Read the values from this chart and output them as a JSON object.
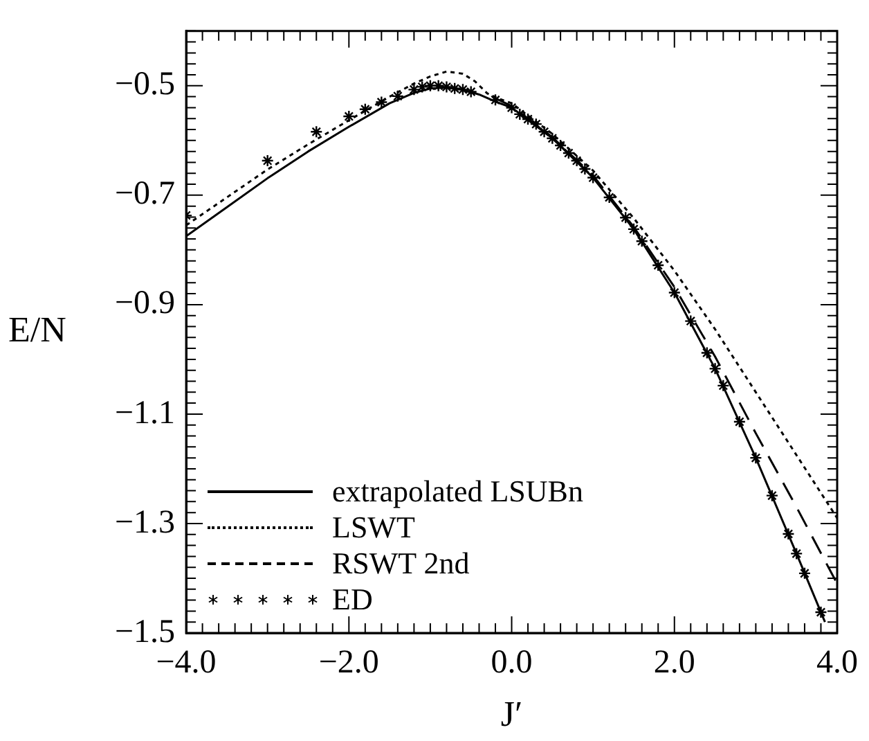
{
  "chart_data": {
    "type": "line",
    "xlabel": "J′",
    "ylabel": "E/N",
    "xlim": [
      -4,
      4
    ],
    "ylim": [
      -1.5,
      -0.4
    ],
    "xticks": [
      {
        "value": -4,
        "label": "−4.0"
      },
      {
        "value": -3.8,
        "label": null
      },
      {
        "value": -3.6,
        "label": null
      },
      {
        "value": -3.4,
        "label": null
      },
      {
        "value": -3.2,
        "label": null
      },
      {
        "value": -3,
        "label": null
      },
      {
        "value": -2.8,
        "label": null
      },
      {
        "value": -2.6,
        "label": null
      },
      {
        "value": -2.4,
        "label": null
      },
      {
        "value": -2.2,
        "label": null
      },
      {
        "value": -2,
        "label": "−2.0"
      },
      {
        "value": -1.8,
        "label": null
      },
      {
        "value": -1.6,
        "label": null
      },
      {
        "value": -1.4,
        "label": null
      },
      {
        "value": -1.2,
        "label": null
      },
      {
        "value": -1,
        "label": null
      },
      {
        "value": -0.8,
        "label": null
      },
      {
        "value": -0.6,
        "label": null
      },
      {
        "value": -0.4,
        "label": null
      },
      {
        "value": -0.2,
        "label": null
      },
      {
        "value": 0,
        "label": "0.0"
      },
      {
        "value": 0.2,
        "label": null
      },
      {
        "value": 0.4,
        "label": null
      },
      {
        "value": 0.6,
        "label": null
      },
      {
        "value": 0.8,
        "label": null
      },
      {
        "value": 1,
        "label": null
      },
      {
        "value": 1.2,
        "label": null
      },
      {
        "value": 1.4,
        "label": null
      },
      {
        "value": 1.6,
        "label": null
      },
      {
        "value": 1.8,
        "label": null
      },
      {
        "value": 2,
        "label": "2.0"
      },
      {
        "value": 2.2,
        "label": null
      },
      {
        "value": 2.4,
        "label": null
      },
      {
        "value": 2.6,
        "label": null
      },
      {
        "value": 2.8,
        "label": null
      },
      {
        "value": 3,
        "label": null
      },
      {
        "value": 3.2,
        "label": null
      },
      {
        "value": 3.4,
        "label": null
      },
      {
        "value": 3.6,
        "label": null
      },
      {
        "value": 3.8,
        "label": null
      },
      {
        "value": 4,
        "label": "4.0"
      }
    ],
    "yticks": [
      {
        "value": -1.5,
        "label": "−1.5"
      },
      {
        "value": -1.48,
        "label": null
      },
      {
        "value": -1.46,
        "label": null
      },
      {
        "value": -1.44,
        "label": null
      },
      {
        "value": -1.42,
        "label": null
      },
      {
        "value": -1.4,
        "label": null
      },
      {
        "value": -1.38,
        "label": null
      },
      {
        "value": -1.36,
        "label": null
      },
      {
        "value": -1.34,
        "label": null
      },
      {
        "value": -1.32,
        "label": null
      },
      {
        "value": -1.3,
        "label": "−1.3"
      },
      {
        "value": -1.28,
        "label": null
      },
      {
        "value": -1.26,
        "label": null
      },
      {
        "value": -1.24,
        "label": null
      },
      {
        "value": -1.22,
        "label": null
      },
      {
        "value": -1.2,
        "label": null
      },
      {
        "value": -1.18,
        "label": null
      },
      {
        "value": -1.16,
        "label": null
      },
      {
        "value": -1.14,
        "label": null
      },
      {
        "value": -1.12,
        "label": null
      },
      {
        "value": -1.1,
        "label": "−1.1"
      },
      {
        "value": -1.08,
        "label": null
      },
      {
        "value": -1.06,
        "label": null
      },
      {
        "value": -1.04,
        "label": null
      },
      {
        "value": -1.02,
        "label": null
      },
      {
        "value": -1,
        "label": null
      },
      {
        "value": -0.98,
        "label": null
      },
      {
        "value": -0.96,
        "label": null
      },
      {
        "value": -0.94,
        "label": null
      },
      {
        "value": -0.92,
        "label": null
      },
      {
        "value": -0.9,
        "label": "−0.9"
      },
      {
        "value": -0.88,
        "label": null
      },
      {
        "value": -0.86,
        "label": null
      },
      {
        "value": -0.84,
        "label": null
      },
      {
        "value": -0.82,
        "label": null
      },
      {
        "value": -0.8,
        "label": null
      },
      {
        "value": -0.78,
        "label": null
      },
      {
        "value": -0.76,
        "label": null
      },
      {
        "value": -0.74,
        "label": null
      },
      {
        "value": -0.72,
        "label": null
      },
      {
        "value": -0.7,
        "label": "−0.7"
      },
      {
        "value": -0.68,
        "label": null
      },
      {
        "value": -0.66,
        "label": null
      },
      {
        "value": -0.64,
        "label": null
      },
      {
        "value": -0.62,
        "label": null
      },
      {
        "value": -0.6,
        "label": null
      },
      {
        "value": -0.58,
        "label": null
      },
      {
        "value": -0.56,
        "label": null
      },
      {
        "value": -0.54,
        "label": null
      },
      {
        "value": -0.52,
        "label": null
      },
      {
        "value": -0.5,
        "label": "−0.5"
      },
      {
        "value": -0.48,
        "label": null
      },
      {
        "value": -0.46,
        "label": null
      },
      {
        "value": -0.44,
        "label": null
      },
      {
        "value": -0.42,
        "label": null
      },
      {
        "value": -0.4,
        "label": null
      }
    ],
    "legend": "bottom left",
    "series": [
      {
        "name": "extrapolated LSUBn",
        "color": "#000000",
        "line_style": "solid",
        "x": [
          -4,
          -3.5,
          -3,
          -2.5,
          -2,
          -1.5,
          -1.2,
          -1,
          -0.8,
          -0.6,
          -0.4,
          -0.2,
          0,
          0.5,
          1,
          1.5,
          2,
          2.5,
          3,
          3.5,
          3.85
        ],
        "values": [
          -0.775,
          -0.722,
          -0.669,
          -0.62,
          -0.575,
          -0.532,
          -0.513,
          -0.505,
          -0.503,
          -0.507,
          -0.516,
          -0.529,
          -0.54,
          -0.596,
          -0.668,
          -0.762,
          -0.878,
          -1.017,
          -1.18,
          -1.355,
          -1.48
        ]
      },
      {
        "name": "LSWT",
        "color": "#000000",
        "line_style": "dotted",
        "x": [
          -4,
          -3.5,
          -3,
          -2.5,
          -2,
          -1.5,
          -1.2,
          -1,
          -0.8,
          -0.6,
          -0.45,
          -0.3,
          -0.15,
          0,
          0.5,
          1,
          1.5,
          2,
          2.5,
          3,
          3.5,
          4
        ],
        "values": [
          -0.755,
          -0.704,
          -0.653,
          -0.607,
          -0.563,
          -0.52,
          -0.496,
          -0.483,
          -0.474,
          -0.478,
          -0.492,
          -0.514,
          -0.524,
          -0.532,
          -0.588,
          -0.655,
          -0.742,
          -0.838,
          -0.945,
          -1.06,
          -1.175,
          -1.29
        ]
      },
      {
        "name": "RSWT 2nd",
        "color": "#000000",
        "line_style": "dashed",
        "x": [
          -0.2,
          0,
          0.5,
          1,
          1.5,
          2,
          2.5,
          3,
          3.5,
          4
        ],
        "values": [
          -0.523,
          -0.537,
          -0.594,
          -0.664,
          -0.758,
          -0.868,
          -0.995,
          -1.135,
          -1.27,
          -1.41
        ]
      },
      {
        "name": "ED",
        "type": "scatter",
        "color": "#000000",
        "marker": "cross",
        "x": [
          -4,
          -3,
          -2.4,
          -2,
          -1.8,
          -1.6,
          -1.4,
          -1.2,
          -1.1,
          -1,
          -0.9,
          -0.8,
          -0.7,
          -0.6,
          -0.5,
          -0.2,
          0,
          0.1,
          0.2,
          0.3,
          0.4,
          0.5,
          0.6,
          0.7,
          0.8,
          0.9,
          1,
          1.2,
          1.4,
          1.5,
          1.6,
          1.8,
          2,
          2.2,
          2.4,
          2.5,
          2.6,
          2.8,
          3,
          3.2,
          3.4,
          3.5,
          3.6,
          3.8
        ],
        "values": [
          -0.737,
          -0.637,
          -0.584,
          -0.556,
          -0.543,
          -0.53,
          -0.519,
          -0.507,
          -0.502,
          -0.5,
          -0.5,
          -0.502,
          -0.505,
          -0.507,
          -0.511,
          -0.526,
          -0.54,
          -0.552,
          -0.561,
          -0.57,
          -0.584,
          -0.596,
          -0.609,
          -0.623,
          -0.637,
          -0.652,
          -0.668,
          -0.704,
          -0.741,
          -0.762,
          -0.784,
          -0.828,
          -0.878,
          -0.93,
          -0.988,
          -1.017,
          -1.048,
          -1.114,
          -1.18,
          -1.249,
          -1.319,
          -1.355,
          -1.391,
          -1.462
        ]
      }
    ]
  }
}
